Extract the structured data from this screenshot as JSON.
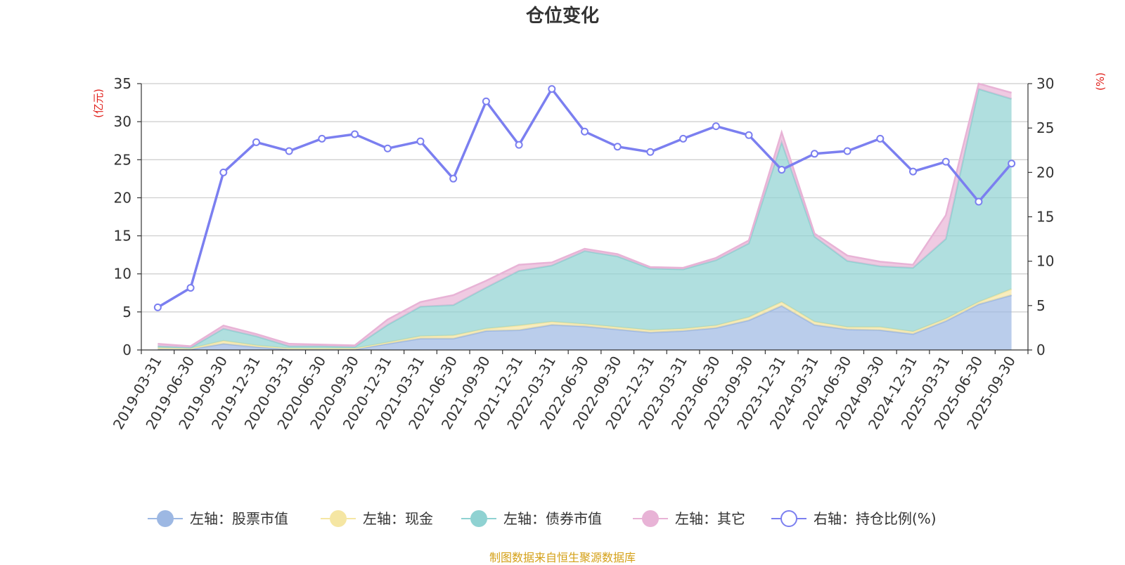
{
  "title": "仓位变化",
  "source_note": "制图数据来自恒生聚源数据库",
  "chart_data": {
    "type": "area",
    "categories": [
      "2019-03-31",
      "2019-06-30",
      "2019-09-30",
      "2019-12-31",
      "2020-03-31",
      "2020-06-30",
      "2020-09-30",
      "2020-12-31",
      "2021-03-31",
      "2021-06-30",
      "2021-09-30",
      "2021-12-31",
      "2022-03-31",
      "2022-06-30",
      "2022-09-30",
      "2022-12-31",
      "2023-03-31",
      "2023-06-30",
      "2023-09-30",
      "2023-12-31",
      "2024-03-31",
      "2024-06-30",
      "2024-09-30",
      "2024-12-31",
      "2025-03-31",
      "2025-06-30",
      "2025-09-30"
    ],
    "left_axis": {
      "unit": "(亿元)",
      "min": 0,
      "max": 35,
      "ticks": [
        0,
        5,
        10,
        15,
        20,
        25,
        30,
        35
      ]
    },
    "right_axis": {
      "unit": "(%)",
      "min": 0,
      "max": 30,
      "ticks": [
        0,
        5,
        10,
        15,
        20,
        25,
        30
      ]
    },
    "series": [
      {
        "name": "左轴：股票市值",
        "axis": "left",
        "type": "stacked-area",
        "color": "#9db8e3",
        "values": [
          0.1,
          0.1,
          0.8,
          0.4,
          0.1,
          0.1,
          0.1,
          0.8,
          1.5,
          1.5,
          2.5,
          2.6,
          3.3,
          3.1,
          2.7,
          2.3,
          2.5,
          2.9,
          3.9,
          5.8,
          3.3,
          2.7,
          2.6,
          2.1,
          3.8,
          6.0,
          7.2
        ]
      },
      {
        "name": "左轴：现金",
        "axis": "left",
        "type": "stacked-area",
        "color": "#f5e6a3",
        "values": [
          0.2,
          0.1,
          0.4,
          0.2,
          0.1,
          0.1,
          0.1,
          0.2,
          0.3,
          0.4,
          0.3,
          0.6,
          0.4,
          0.3,
          0.3,
          0.3,
          0.3,
          0.3,
          0.4,
          0.5,
          0.4,
          0.3,
          0.4,
          0.3,
          0.3,
          0.3,
          0.8
        ]
      },
      {
        "name": "左轴：债券市值",
        "axis": "left",
        "type": "stacked-area",
        "color": "#8fd2d2",
        "values": [
          0.2,
          0.1,
          1.6,
          1.2,
          0.3,
          0.3,
          0.2,
          2.3,
          3.9,
          4.0,
          5.4,
          7.2,
          7.4,
          9.6,
          9.3,
          8.1,
          7.8,
          8.6,
          9.7,
          21.0,
          11.2,
          8.7,
          8.0,
          8.4,
          10.5,
          28.0,
          25.0
        ]
      },
      {
        "name": "左轴：其它",
        "axis": "left",
        "type": "stacked-area",
        "color": "#e8b3d6",
        "values": [
          0.3,
          0.2,
          0.4,
          0.3,
          0.3,
          0.2,
          0.2,
          0.7,
          0.6,
          1.3,
          0.9,
          0.8,
          0.4,
          0.3,
          0.3,
          0.2,
          0.2,
          0.3,
          0.4,
          1.3,
          0.4,
          0.7,
          0.6,
          0.4,
          3.1,
          0.7,
          0.8
        ]
      },
      {
        "name": "右轴：持仓比例(%)",
        "axis": "right",
        "type": "line",
        "color": "#7b7ff0",
        "values": [
          4.8,
          7.0,
          20.0,
          23.4,
          22.4,
          23.8,
          24.3,
          22.7,
          23.5,
          19.3,
          28.0,
          23.1,
          29.4,
          24.6,
          22.9,
          22.3,
          23.8,
          25.2,
          24.2,
          20.3,
          22.1,
          22.4,
          23.8,
          20.1,
          21.2,
          16.7,
          21.0
        ]
      }
    ]
  }
}
